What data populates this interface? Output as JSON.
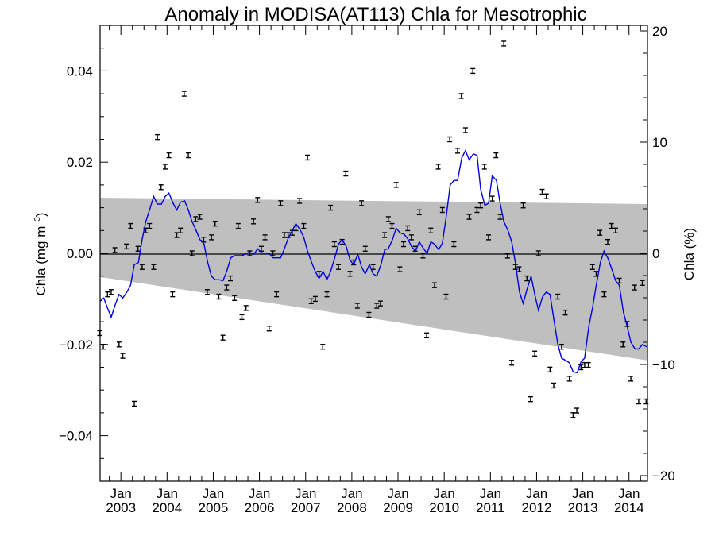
{
  "chart_data": {
    "type": "scatter",
    "title": "Anomaly in MODISA(AT113) Chla for Mesotrophic",
    "ylabel": "Chla (mg m",
    "ylabel_sup": "−3",
    "ylabel_close": ")",
    "y2label": "Chla (%)",
    "xlim": [
      2002.55,
      2014.4
    ],
    "ylim": [
      -0.05,
      0.05
    ],
    "y2lim": [
      -20.5,
      20.5
    ],
    "yticks": [
      {
        "value": 0.04,
        "label": "0.04"
      },
      {
        "value": 0.02,
        "label": "0.02"
      },
      {
        "value": 0.0,
        "label": "0.00"
      },
      {
        "value": -0.02,
        "label": "−0.02"
      },
      {
        "value": -0.04,
        "label": "−0.04"
      }
    ],
    "y2ticks": [
      {
        "value": 20,
        "label": "20"
      },
      {
        "value": 10,
        "label": "10"
      },
      {
        "value": 0,
        "label": "0"
      },
      {
        "value": -10,
        "label": "−10"
      },
      {
        "value": -20,
        "label": "−20"
      }
    ],
    "xticks": [
      {
        "value": 2003.0,
        "label": "Jan",
        "year": "2003"
      },
      {
        "value": 2004.0,
        "label": "Jan",
        "year": "2004"
      },
      {
        "value": 2005.0,
        "label": "Jan",
        "year": "2005"
      },
      {
        "value": 2006.0,
        "label": "Jan",
        "year": "2006"
      },
      {
        "value": 2007.0,
        "label": "Jan",
        "year": "2007"
      },
      {
        "value": 2008.0,
        "label": "Jan",
        "year": "2008"
      },
      {
        "value": 2009.0,
        "label": "Jan",
        "year": "2009"
      },
      {
        "value": 2010.0,
        "label": "Jan",
        "year": "2010"
      },
      {
        "value": 2011.0,
        "label": "Jan",
        "year": "2011"
      },
      {
        "value": 2012.0,
        "label": "Jan",
        "year": "2012"
      },
      {
        "value": 2013.0,
        "label": "Jan",
        "year": "2013"
      },
      {
        "value": 2014.0,
        "label": "Jan",
        "year": "2014"
      }
    ],
    "envelope": {
      "upper": [
        [
          2002.55,
          0.0122
        ],
        [
          2014.4,
          0.0108
        ]
      ],
      "lower": [
        [
          2002.55,
          -0.0052
        ],
        [
          2014.4,
          -0.0235
        ]
      ],
      "color": "#bfbfbf"
    },
    "line_color": "#0000dd",
    "smoothed_series": [
      [
        2002.55,
        -0.0105
      ],
      [
        2002.63,
        -0.0098
      ],
      [
        2002.71,
        -0.012
      ],
      [
        2002.79,
        -0.014
      ],
      [
        2002.88,
        -0.0112
      ],
      [
        2002.96,
        -0.009
      ],
      [
        2003.04,
        -0.0098
      ],
      [
        2003.13,
        -0.0085
      ],
      [
        2003.21,
        -0.007
      ],
      [
        2003.29,
        -0.0025
      ],
      [
        2003.38,
        -0.002
      ],
      [
        2003.46,
        0.003
      ],
      [
        2003.54,
        0.007
      ],
      [
        2003.63,
        0.0098
      ],
      [
        2003.71,
        0.0125
      ],
      [
        2003.79,
        0.0108
      ],
      [
        2003.88,
        0.0108
      ],
      [
        2003.96,
        0.0125
      ],
      [
        2004.04,
        0.0132
      ],
      [
        2004.13,
        0.011
      ],
      [
        2004.21,
        0.0095
      ],
      [
        2004.29,
        0.0112
      ],
      [
        2004.38,
        0.0115
      ],
      [
        2004.46,
        0.0095
      ],
      [
        2004.54,
        0.007
      ],
      [
        2004.63,
        0.005
      ],
      [
        2004.71,
        0.003
      ],
      [
        2004.79,
        0.0025
      ],
      [
        2004.88,
        -0.002
      ],
      [
        2004.96,
        -0.005
      ],
      [
        2005.04,
        -0.0058
      ],
      [
        2005.13,
        -0.0058
      ],
      [
        2005.21,
        -0.006
      ],
      [
        2005.29,
        -0.004
      ],
      [
        2005.38,
        -0.001
      ],
      [
        2005.46,
        -0.0005
      ],
      [
        2005.54,
        -0.0005
      ],
      [
        2005.63,
        -0.0005
      ],
      [
        2005.71,
        0.0
      ],
      [
        2005.79,
        0.0002
      ],
      [
        2005.88,
        -0.0002
      ],
      [
        2005.96,
        0.001
      ],
      [
        2006.04,
        0.0002
      ],
      [
        2006.13,
        -0.0002
      ],
      [
        2006.21,
        0.0
      ],
      [
        2006.29,
        -0.001
      ],
      [
        2006.38,
        -0.001
      ],
      [
        2006.46,
        -0.001
      ],
      [
        2006.54,
        0.001
      ],
      [
        2006.63,
        0.0035
      ],
      [
        2006.71,
        0.005
      ],
      [
        2006.79,
        0.0065
      ],
      [
        2006.88,
        0.0052
      ],
      [
        2006.96,
        0.0035
      ],
      [
        2007.04,
        0.0005
      ],
      [
        2007.13,
        -0.002
      ],
      [
        2007.21,
        -0.004
      ],
      [
        2007.29,
        -0.0055
      ],
      [
        2007.38,
        -0.004
      ],
      [
        2007.46,
        -0.0058
      ],
      [
        2007.54,
        -0.004
      ],
      [
        2007.63,
        -0.001
      ],
      [
        2007.71,
        0.002
      ],
      [
        2007.79,
        0.003
      ],
      [
        2007.88,
        0.0015
      ],
      [
        2007.96,
        -0.0015
      ],
      [
        2008.04,
        -0.0025
      ],
      [
        2008.13,
        -0.0002
      ],
      [
        2008.21,
        -0.003
      ],
      [
        2008.29,
        -0.0045
      ],
      [
        2008.38,
        -0.0025
      ],
      [
        2008.46,
        -0.0045
      ],
      [
        2008.54,
        -0.005
      ],
      [
        2008.63,
        -0.0025
      ],
      [
        2008.71,
        0.0008
      ],
      [
        2008.79,
        0.001
      ],
      [
        2008.88,
        0.003
      ],
      [
        2008.96,
        0.0055
      ],
      [
        2009.04,
        0.0045
      ],
      [
        2009.13,
        0.0042
      ],
      [
        2009.21,
        0.0032
      ],
      [
        2009.29,
        0.0015
      ],
      [
        2009.38,
        0.0005
      ],
      [
        2009.46,
        0.0025
      ],
      [
        2009.54,
        0.0012
      ],
      [
        2009.63,
        0.0
      ],
      [
        2009.71,
        0.0025
      ],
      [
        2009.79,
        0.002
      ],
      [
        2009.88,
        0.0008
      ],
      [
        2009.96,
        0.0022
      ],
      [
        2010.04,
        0.0078
      ],
      [
        2010.13,
        0.015
      ],
      [
        2010.21,
        0.016
      ],
      [
        2010.29,
        0.016
      ],
      [
        2010.38,
        0.021
      ],
      [
        2010.46,
        0.0225
      ],
      [
        2010.54,
        0.0205
      ],
      [
        2010.63,
        0.0218
      ],
      [
        2010.71,
        0.0215
      ],
      [
        2010.79,
        0.014
      ],
      [
        2010.88,
        0.0105
      ],
      [
        2010.96,
        0.011
      ],
      [
        2011.04,
        0.017
      ],
      [
        2011.13,
        0.016
      ],
      [
        2011.21,
        0.011
      ],
      [
        2011.29,
        0.007
      ],
      [
        2011.38,
        0.005
      ],
      [
        2011.46,
        0.0025
      ],
      [
        2011.54,
        -0.002
      ],
      [
        2011.63,
        -0.0085
      ],
      [
        2011.71,
        -0.011
      ],
      [
        2011.79,
        -0.008
      ],
      [
        2011.88,
        -0.005
      ],
      [
        2011.96,
        -0.009
      ],
      [
        2012.04,
        -0.0125
      ],
      [
        2012.13,
        -0.0095
      ],
      [
        2012.21,
        -0.0085
      ],
      [
        2012.29,
        -0.009
      ],
      [
        2012.38,
        -0.015
      ],
      [
        2012.46,
        -0.02
      ],
      [
        2012.54,
        -0.023
      ],
      [
        2012.63,
        -0.0235
      ],
      [
        2012.71,
        -0.024
      ],
      [
        2012.79,
        -0.026
      ],
      [
        2012.88,
        -0.0262
      ],
      [
        2012.96,
        -0.0238
      ],
      [
        2013.04,
        -0.023
      ],
      [
        2013.13,
        -0.016
      ],
      [
        2013.21,
        -0.012
      ],
      [
        2013.29,
        -0.007
      ],
      [
        2013.38,
        -0.002
      ],
      [
        2013.46,
        0.0005
      ],
      [
        2013.54,
        -0.001
      ],
      [
        2013.63,
        -0.0035
      ],
      [
        2013.71,
        -0.006
      ],
      [
        2013.79,
        -0.007
      ],
      [
        2013.88,
        -0.013
      ],
      [
        2013.96,
        -0.016
      ],
      [
        2014.04,
        -0.0195
      ],
      [
        2014.13,
        -0.021
      ],
      [
        2014.21,
        -0.021
      ],
      [
        2014.29,
        -0.02
      ],
      [
        2014.38,
        -0.0205
      ]
    ],
    "monthly_points": [
      [
        2002.54,
        -0.0175
      ],
      [
        2002.62,
        -0.0205
      ],
      [
        2002.71,
        -0.009
      ],
      [
        2002.79,
        -0.0085
      ],
      [
        2002.87,
        0.0007
      ],
      [
        2002.96,
        -0.02
      ],
      [
        2003.04,
        -0.0225
      ],
      [
        2003.12,
        0.0015
      ],
      [
        2003.21,
        0.006
      ],
      [
        2003.29,
        -0.033
      ],
      [
        2003.37,
        0.001
      ],
      [
        2003.46,
        -0.003
      ],
      [
        2003.54,
        0.005
      ],
      [
        2003.62,
        0.006
      ],
      [
        2003.71,
        -0.003
      ],
      [
        2003.79,
        0.0255
      ],
      [
        2003.87,
        0.0145
      ],
      [
        2003.96,
        0.019
      ],
      [
        2004.04,
        0.0215
      ],
      [
        2004.12,
        -0.009
      ],
      [
        2004.21,
        0.004
      ],
      [
        2004.29,
        0.005
      ],
      [
        2004.37,
        0.035
      ],
      [
        2004.46,
        0.0215
      ],
      [
        2004.54,
        0.0
      ],
      [
        2004.62,
        0.0075
      ],
      [
        2004.71,
        0.008
      ],
      [
        2004.79,
        0.003
      ],
      [
        2004.87,
        -0.0085
      ],
      [
        2004.96,
        0.0035
      ],
      [
        2005.04,
        0.0065
      ],
      [
        2005.12,
        -0.0095
      ],
      [
        2005.21,
        -0.0185
      ],
      [
        2005.29,
        -0.0075
      ],
      [
        2005.37,
        -0.0055
      ],
      [
        2005.46,
        -0.0098
      ],
      [
        2005.54,
        0.006
      ],
      [
        2005.62,
        -0.014
      ],
      [
        2005.71,
        -0.012
      ],
      [
        2005.79,
        0.0
      ],
      [
        2005.87,
        0.007
      ],
      [
        2005.96,
        0.0117
      ],
      [
        2006.04,
        0.001
      ],
      [
        2006.12,
        0.0035
      ],
      [
        2006.21,
        -0.0165
      ],
      [
        2006.29,
        0.0
      ],
      [
        2006.37,
        -0.009
      ],
      [
        2006.46,
        0.011
      ],
      [
        2006.54,
        0.004
      ],
      [
        2006.62,
        0.004
      ],
      [
        2006.71,
        0.0045
      ],
      [
        2006.79,
        0.0055
      ],
      [
        2006.87,
        0.0115
      ],
      [
        2006.96,
        0.006
      ],
      [
        2007.04,
        0.021
      ],
      [
        2007.12,
        -0.0105
      ],
      [
        2007.21,
        -0.01
      ],
      [
        2007.29,
        -0.0045
      ],
      [
        2007.37,
        -0.0205
      ],
      [
        2007.46,
        -0.009
      ],
      [
        2007.54,
        0.01
      ],
      [
        2007.62,
        0.002
      ],
      [
        2007.71,
        -0.003
      ],
      [
        2007.79,
        0.0025
      ],
      [
        2007.87,
        0.0175
      ],
      [
        2007.96,
        -0.0045
      ],
      [
        2008.04,
        -0.002
      ],
      [
        2008.12,
        -0.0115
      ],
      [
        2008.21,
        0.011
      ],
      [
        2008.29,
        0.001
      ],
      [
        2008.37,
        -0.0135
      ],
      [
        2008.46,
        -0.003
      ],
      [
        2008.54,
        -0.0115
      ],
      [
        2008.62,
        -0.011
      ],
      [
        2008.71,
        0.004
      ],
      [
        2008.79,
        0.0075
      ],
      [
        2008.87,
        0.006
      ],
      [
        2008.96,
        0.015
      ],
      [
        2009.04,
        -0.0035
      ],
      [
        2009.12,
        0.002
      ],
      [
        2009.21,
        0.0055
      ],
      [
        2009.29,
        0.0035
      ],
      [
        2009.37,
        0.001
      ],
      [
        2009.46,
        0.009
      ],
      [
        2009.54,
        -0.0005
      ],
      [
        2009.62,
        -0.018
      ],
      [
        2009.71,
        0.005
      ],
      [
        2009.79,
        -0.007
      ],
      [
        2009.87,
        0.019
      ],
      [
        2009.96,
        0.0095
      ],
      [
        2010.04,
        -0.0095
      ],
      [
        2010.12,
        0.025
      ],
      [
        2010.21,
        0.002
      ],
      [
        2010.29,
        0.0225
      ],
      [
        2010.37,
        0.0345
      ],
      [
        2010.46,
        0.027
      ],
      [
        2010.54,
        0.008
      ],
      [
        2010.62,
        0.04
      ],
      [
        2010.71,
        0.0095
      ],
      [
        2010.79,
        0.0105
      ],
      [
        2010.87,
        0.019
      ],
      [
        2010.96,
        0.0035
      ],
      [
        2011.04,
        0.012
      ],
      [
        2011.12,
        0.0215
      ],
      [
        2011.21,
        0.008
      ],
      [
        2011.29,
        0.046
      ],
      [
        2011.37,
        -0.0005
      ],
      [
        2011.46,
        -0.024
      ],
      [
        2011.54,
        -0.003
      ],
      [
        2011.62,
        -0.0035
      ],
      [
        2011.71,
        0.0105
      ],
      [
        2011.79,
        -0.0055
      ],
      [
        2011.87,
        -0.032
      ],
      [
        2011.96,
        -0.022
      ],
      [
        2012.04,
        0.0
      ],
      [
        2012.12,
        0.0135
      ],
      [
        2012.21,
        0.0125
      ],
      [
        2012.29,
        -0.0255
      ],
      [
        2012.37,
        -0.029
      ],
      [
        2012.46,
        -0.0095
      ],
      [
        2012.54,
        -0.0205
      ],
      [
        2012.62,
        -0.013
      ],
      [
        2012.71,
        -0.0275
      ],
      [
        2012.79,
        -0.0355
      ],
      [
        2012.87,
        -0.0345
      ],
      [
        2012.96,
        -0.025
      ],
      [
        2013.04,
        -0.0245
      ],
      [
        2013.12,
        -0.0245
      ],
      [
        2013.21,
        -0.003
      ],
      [
        2013.29,
        -0.0045
      ],
      [
        2013.37,
        0.0045
      ],
      [
        2013.46,
        -0.009
      ],
      [
        2013.54,
        0.0025
      ],
      [
        2013.62,
        0.006
      ],
      [
        2013.71,
        0.005
      ],
      [
        2013.79,
        -0.006
      ],
      [
        2013.87,
        -0.02
      ],
      [
        2013.96,
        -0.0155
      ],
      [
        2014.04,
        -0.0275
      ],
      [
        2014.12,
        -0.0075
      ],
      [
        2014.21,
        -0.0325
      ],
      [
        2014.29,
        -0.0065
      ],
      [
        2014.37,
        -0.0325
      ]
    ]
  }
}
